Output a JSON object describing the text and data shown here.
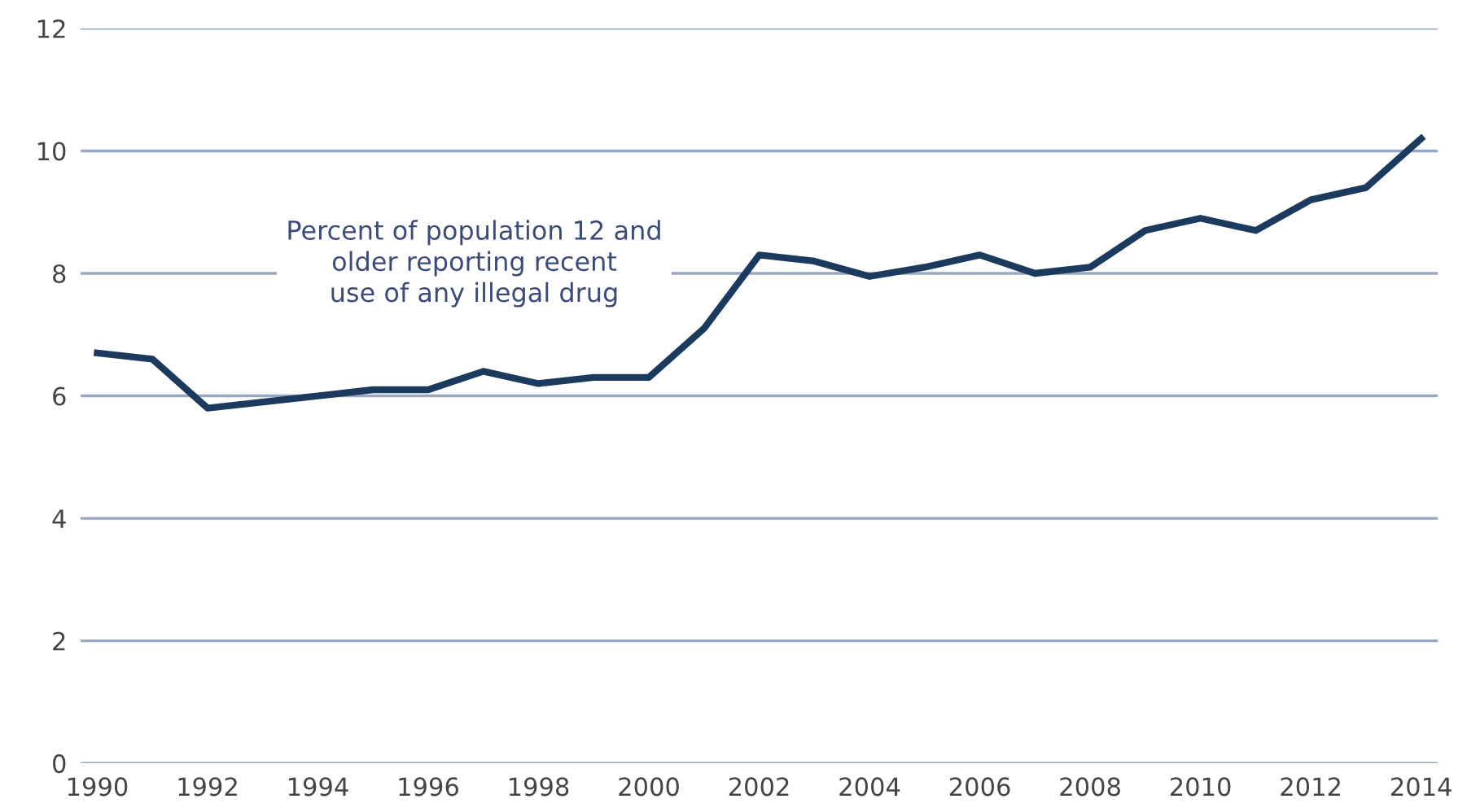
{
  "chart_data": {
    "type": "line",
    "x": [
      1990,
      1991,
      1992,
      1993,
      1994,
      1995,
      1996,
      1997,
      1998,
      1999,
      2000,
      2001,
      2002,
      2003,
      2004,
      2005,
      2006,
      2007,
      2008,
      2009,
      2010,
      2011,
      2012,
      2013,
      2014
    ],
    "series": [
      {
        "color": "#1b3a5e",
        "values": [
          6.7,
          6.6,
          5.8,
          5.9,
          6.0,
          6.1,
          6.1,
          6.4,
          6.2,
          6.3,
          6.3,
          7.1,
          8.3,
          8.2,
          7.95,
          8.1,
          8.3,
          8.0,
          8.1,
          8.7,
          8.9,
          8.7,
          9.2,
          9.4,
          10.2
        ]
      }
    ],
    "annotations": [
      "Percent of population 12 and\nolder reporting recent\nuse of any illegal drug"
    ],
    "xlim": [
      1989.7,
      2014.3
    ],
    "xticks": [
      1990,
      1992,
      1994,
      1996,
      1998,
      2000,
      2002,
      2004,
      2006,
      2008,
      2010,
      2012,
      2014
    ],
    "ylim": [
      0,
      12
    ],
    "yticks": [
      0,
      2,
      4,
      6,
      8,
      10,
      12
    ],
    "grid": "y",
    "legend": false
  }
}
